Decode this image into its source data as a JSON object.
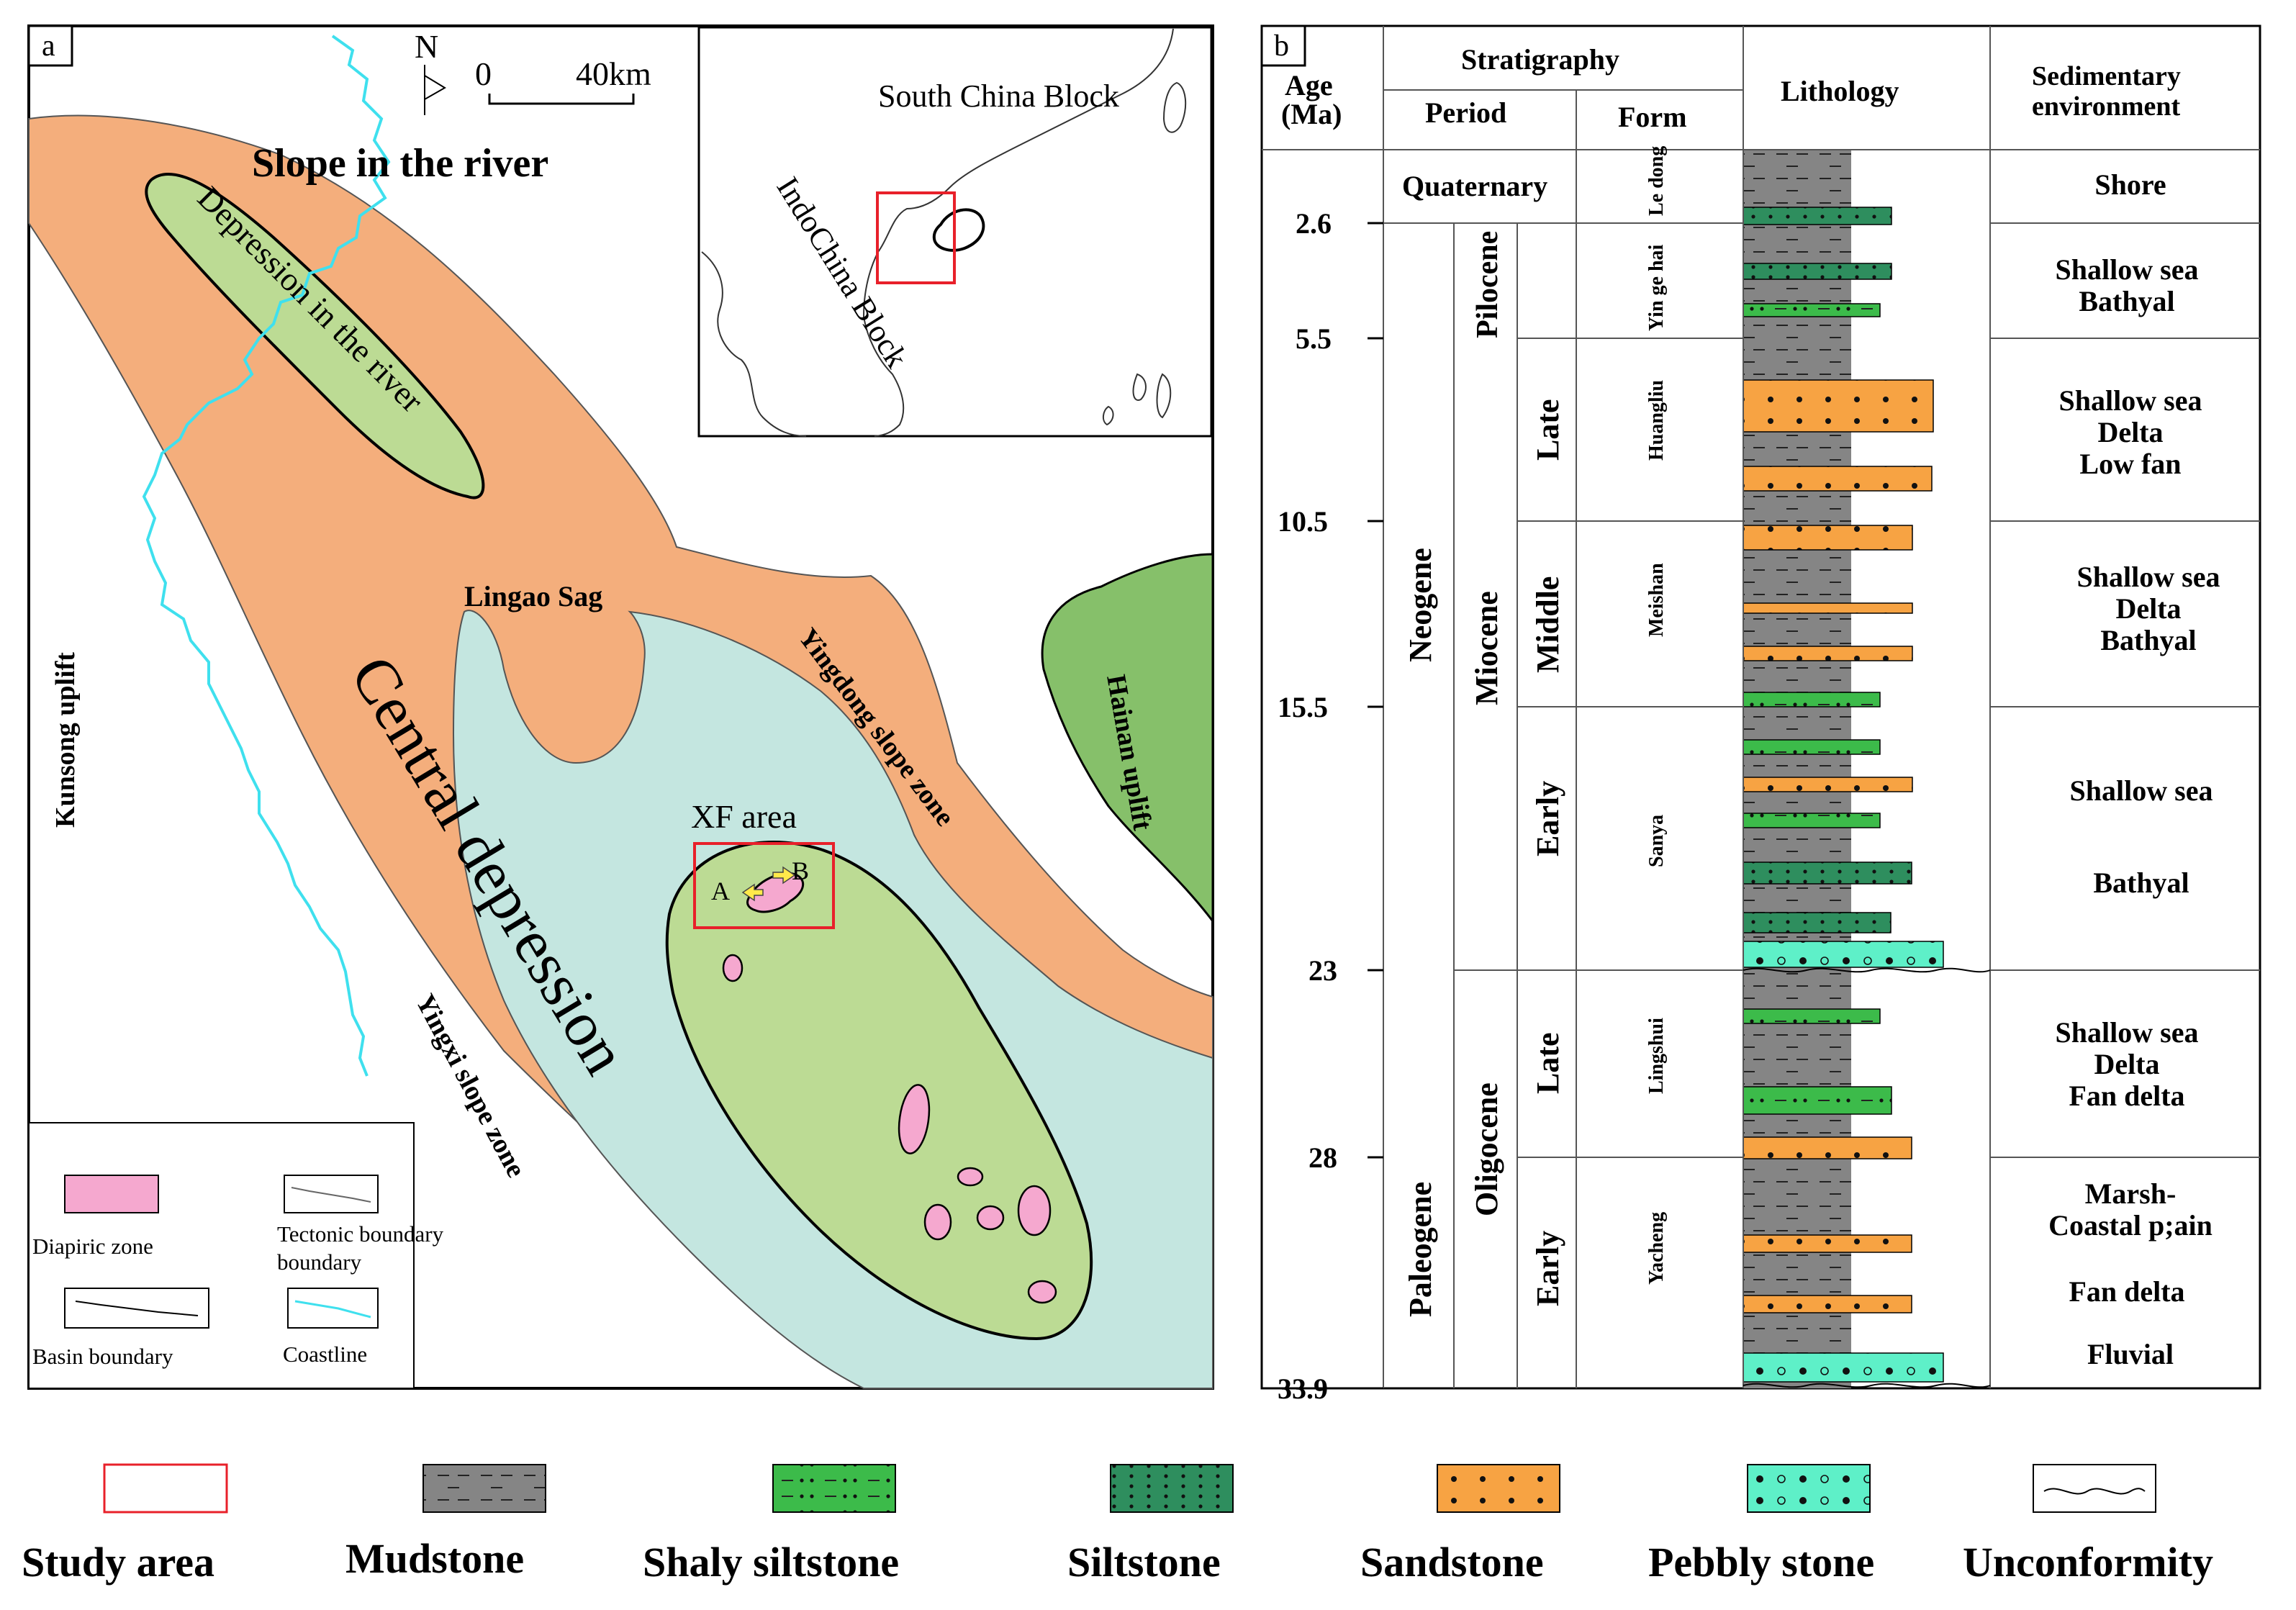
{
  "panel_a": {
    "label": "a",
    "north": "N",
    "scale_zero": "0",
    "scale_km": "40km",
    "regions": {
      "slope_river": "Slope in the river",
      "depression_river": "Depression in the river",
      "kunsong": "Kunsong uplift",
      "lingao": "Lingao Sag",
      "central": "Central depression",
      "yingdong": "Yingdong slope zone",
      "yingxi": "Yingxi slope zone",
      "hainan": "Hainan uplift",
      "xf": "XF area",
      "a": "A",
      "b": "B"
    },
    "inset": {
      "south_china": "South China Block",
      "indochina": "IndoChina Block"
    },
    "legend": {
      "diapiric": "Diapiric zone",
      "tectonic": "Tectonic boundary",
      "basin": "Basin boundary",
      "coastline": "Coastline"
    },
    "colors": {
      "slope_orange": "#F4AE7C",
      "depression_green": "#BCDB94",
      "central_cyan": "#C4E6E0",
      "uplift_green": "#86C06A",
      "diapir_pink": "#F5A8CF",
      "coast_cyan": "#3FE0EE",
      "study_red": "#E8202A"
    }
  },
  "panel_b": {
    "label": "b",
    "headers": {
      "age": "Age\n(Ma)",
      "stratigraphy": "Stratigraphy",
      "period": "Period",
      "form": "Form",
      "lithology": "Lithology",
      "environment": "Sedimentary environment"
    },
    "ages": [
      "2.6",
      "5.5",
      "10.5",
      "15.5",
      "23",
      "28",
      "33.9"
    ],
    "periods": {
      "quaternary": "Quaternary",
      "neogene": "Neogene",
      "paleogene": "Paleogene",
      "pilocene": "Pilocene",
      "miocene": "Miocene",
      "oligocene": "Oligocene",
      "late1": "Late",
      "middle": "Middle",
      "early1": "Early",
      "late2": "Late",
      "early2": "Early"
    },
    "forms": [
      "Le dong",
      "Yin ge hai",
      "Huangliu",
      "Meishan",
      "Sanya",
      "Lingshui",
      "Yacheng"
    ],
    "environments": {
      "e1": [
        "Shore"
      ],
      "e2": [
        "Shallow sea",
        "Bathyal"
      ],
      "e3": [
        "Shallow sea",
        "Delta",
        "Low fan"
      ],
      "e4": [
        "Shallow sea",
        "Delta",
        "Bathyal"
      ],
      "e5a": [
        "Shallow sea"
      ],
      "e5b": [
        "Bathyal"
      ],
      "e6": [
        "Shallow sea",
        "Delta",
        "Fan delta"
      ],
      "e7a": [
        "Marsh-",
        "Coastal p;ain"
      ],
      "e7b": [
        "Fan delta"
      ],
      "e7c": [
        "Fluvial"
      ]
    },
    "colors": {
      "mudstone": "#858585",
      "shaly_siltstone": "#3CBB4A",
      "siltstone": "#2E8E5E",
      "sandstone": "#F7A343",
      "pebbly": "#5EF0C8"
    }
  },
  "legend_bottom": {
    "study_area": "Study area",
    "mudstone": "Mudstone",
    "shaly_siltstone": "Shaly siltstone",
    "siltstone": "Siltstone",
    "sandstone": "Sandstone",
    "pebbly": "Pebbly stone",
    "unconformity": "Unconformity"
  }
}
